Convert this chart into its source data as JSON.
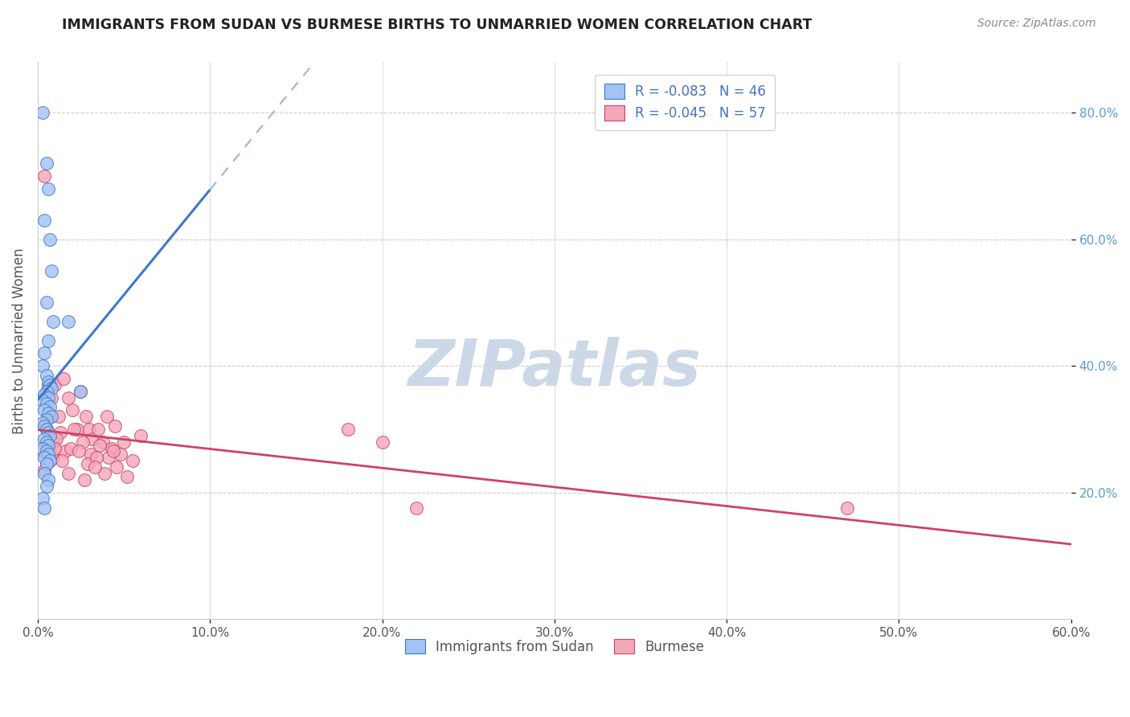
{
  "title": "IMMIGRANTS FROM SUDAN VS BURMESE BIRTHS TO UNMARRIED WOMEN CORRELATION CHART",
  "source": "Source: ZipAtlas.com",
  "ylabel": "Births to Unmarried Women",
  "x_ticks": [
    0,
    10,
    20,
    30,
    40,
    50,
    60
  ],
  "y_ticks": [
    20,
    40,
    60,
    80
  ],
  "xlim": [
    0,
    60
  ],
  "ylim": [
    0,
    88
  ],
  "legend_label1": "R = -0.083   N = 46",
  "legend_label2": "R = -0.045   N = 57",
  "bottom_legend_label1": "Immigrants from Sudan",
  "bottom_legend_label2": "Burmese",
  "color_blue": "#a4c2f4",
  "color_pink": "#f4a7b9",
  "color_blue_line": "#3d78c9",
  "color_pink_line": "#cc4466",
  "color_dashed": "#a0b4d0",
  "watermark_text": "ZIPatlas",
  "watermark_color": "#ccd8e8",
  "blue_scatter_x": [
    0.3,
    0.5,
    0.6,
    0.4,
    0.7,
    0.8,
    0.5,
    0.9,
    0.6,
    0.4,
    0.3,
    0.5,
    0.6,
    0.7,
    0.8,
    0.5,
    0.4,
    0.6,
    0.3,
    0.5,
    0.7,
    0.4,
    0.6,
    0.8,
    0.5,
    0.3,
    1.8,
    0.4,
    0.5,
    0.6,
    0.7,
    0.4,
    0.5,
    0.6,
    0.3,
    0.5,
    0.6,
    0.4,
    0.7,
    0.5,
    2.5,
    0.4,
    0.6,
    0.5,
    0.3,
    0.4
  ],
  "blue_scatter_y": [
    80.0,
    72.0,
    68.0,
    63.0,
    60.0,
    55.0,
    50.0,
    47.0,
    44.0,
    42.0,
    40.0,
    38.5,
    37.5,
    37.0,
    36.5,
    36.0,
    35.5,
    35.0,
    34.5,
    34.0,
    33.5,
    33.0,
    32.5,
    32.0,
    31.5,
    31.0,
    47.0,
    30.5,
    30.0,
    29.5,
    29.0,
    28.5,
    28.0,
    27.5,
    27.0,
    26.5,
    26.0,
    25.5,
    25.0,
    24.5,
    36.0,
    23.0,
    22.0,
    21.0,
    19.0,
    17.5
  ],
  "pink_scatter_x": [
    0.4,
    0.5,
    0.6,
    0.7,
    0.8,
    0.9,
    1.0,
    1.2,
    1.5,
    1.8,
    2.0,
    2.3,
    2.5,
    2.8,
    3.0,
    3.2,
    3.5,
    3.8,
    4.0,
    4.3,
    4.5,
    4.8,
    5.0,
    5.5,
    6.0,
    0.3,
    0.6,
    0.9,
    1.3,
    1.6,
    2.1,
    2.6,
    3.1,
    3.6,
    4.1,
    4.6,
    0.5,
    0.8,
    1.1,
    1.4,
    1.9,
    2.4,
    2.9,
    3.4,
    3.9,
    4.4,
    5.2,
    0.4,
    0.7,
    1.0,
    1.8,
    2.7,
    3.3,
    18.0,
    20.0,
    22.0,
    47.0
  ],
  "pink_scatter_y": [
    70.0,
    30.0,
    37.0,
    32.0,
    35.0,
    28.0,
    37.0,
    32.0,
    38.0,
    35.0,
    33.0,
    30.0,
    36.0,
    32.0,
    30.0,
    28.5,
    30.0,
    28.0,
    32.0,
    27.0,
    30.5,
    26.0,
    28.0,
    25.0,
    29.0,
    26.5,
    27.5,
    25.5,
    29.5,
    26.5,
    30.0,
    28.0,
    26.0,
    27.5,
    25.5,
    24.0,
    24.5,
    26.0,
    28.5,
    25.0,
    27.0,
    26.5,
    24.5,
    25.5,
    23.0,
    26.5,
    22.5,
    23.5,
    25.0,
    27.0,
    23.0,
    22.0,
    24.0,
    30.0,
    28.0,
    17.5,
    17.5
  ]
}
